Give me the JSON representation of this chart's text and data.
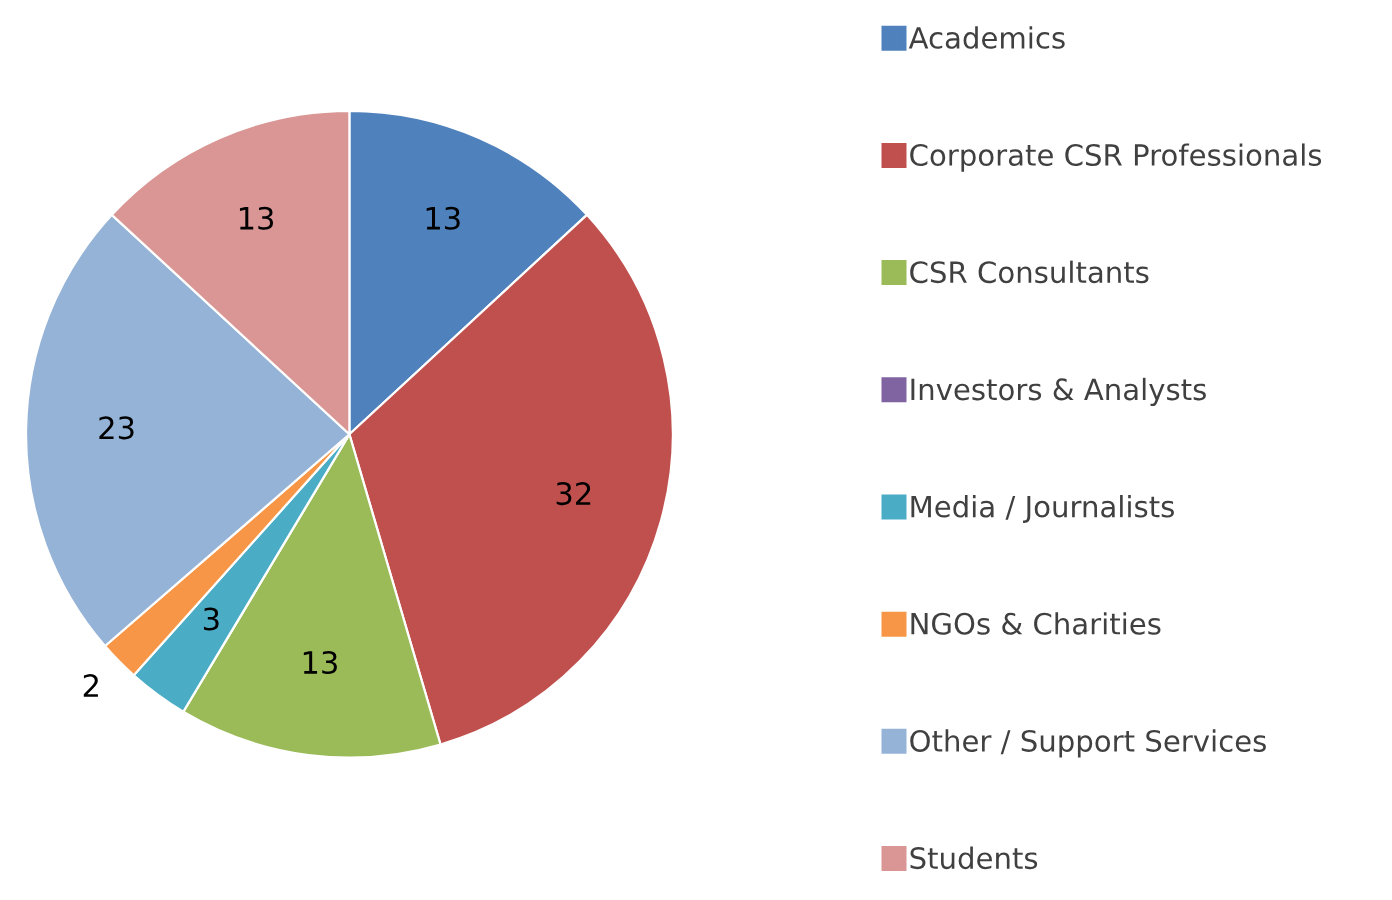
{
  "chart_data": {
    "type": "pie",
    "categories": [
      "Academics",
      "Corporate CSR Professionals",
      "CSR Consultants",
      "Investors & Analysts",
      "Media / Journalists",
      "NGOs & Charities",
      "Other / Support Services",
      "Students"
    ],
    "values": [
      13,
      32,
      13,
      0,
      3,
      2,
      23,
      13
    ],
    "colors": [
      "#4f81bd",
      "#c0504d",
      "#9bbb59",
      "#8064a2",
      "#4bacc6",
      "#f79646",
      "#95b3d7",
      "#d99694"
    ],
    "value_labels": [
      "13",
      "32",
      "13",
      null,
      "3",
      "2",
      "23",
      "13"
    ],
    "legend": "right"
  }
}
